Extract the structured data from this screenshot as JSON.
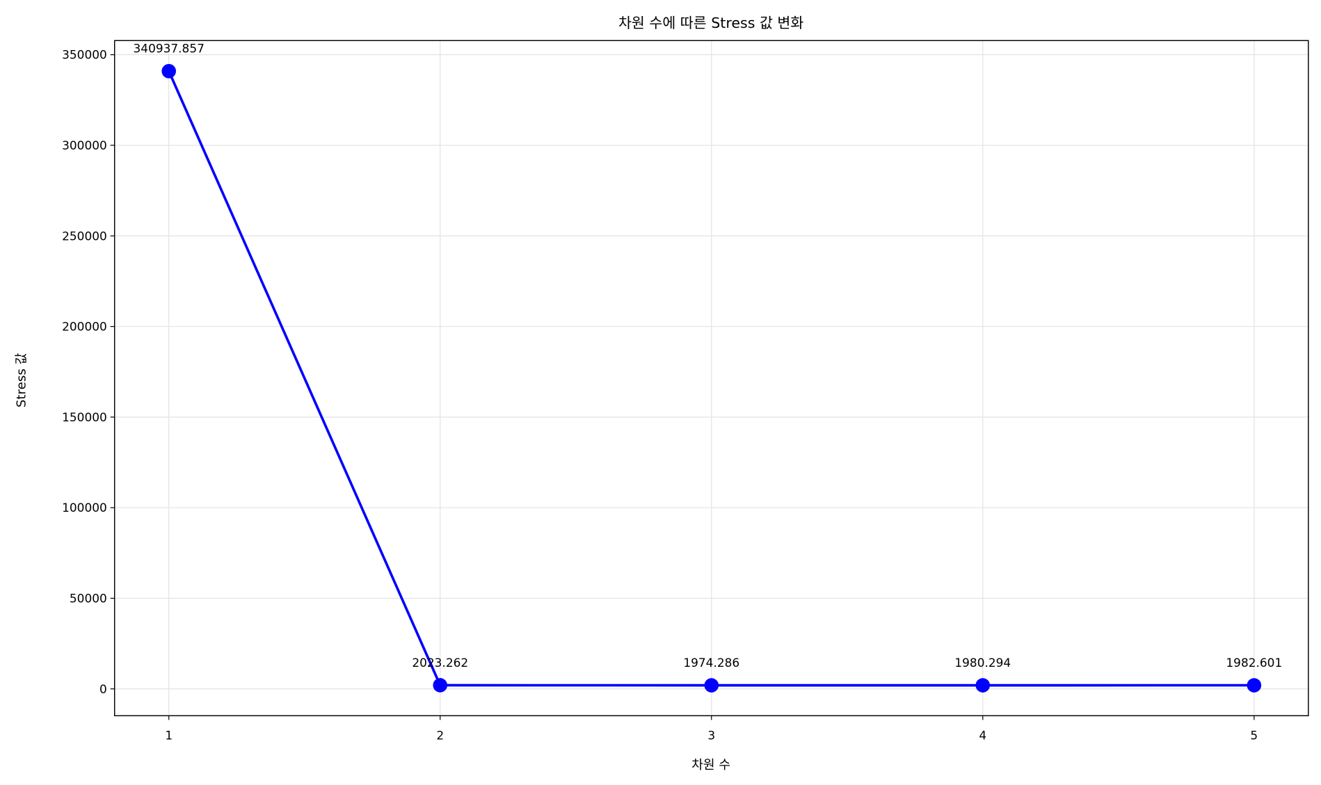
{
  "chart_data": {
    "type": "line",
    "title": "차원 수에 따른 Stress 값 변화",
    "xlabel": "차원 수",
    "ylabel": "Stress 값",
    "x": [
      1,
      2,
      3,
      4,
      5
    ],
    "values": [
      340937.857,
      2023.262,
      1974.286,
      1980.294,
      1982.601
    ],
    "data_labels": [
      "340937.857",
      "2023.262",
      "1974.286",
      "1980.294",
      "1982.601"
    ],
    "xticks": [
      "1",
      "2",
      "3",
      "4",
      "5"
    ],
    "yticks": [
      0,
      50000,
      100000,
      150000,
      200000,
      250000,
      300000,
      350000
    ],
    "xlim": [
      0.8,
      5.2
    ],
    "ylim": [
      -14800,
      357800
    ],
    "grid": true,
    "marker": "circle",
    "color": "#0000ff"
  }
}
